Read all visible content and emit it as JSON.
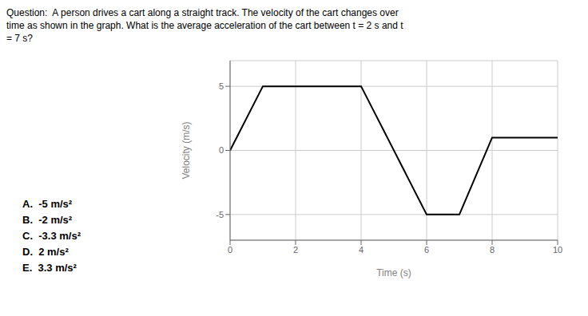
{
  "chart_data": {
    "type": "line",
    "title": "Question:  A person drives a cart along a straight track. The velocity of the cart changes over\ntime as shown in the graph. What is the average acceleration of the cart between t = 2 s and t\n= 7 s?",
    "x": [
      0,
      1,
      4,
      6,
      7,
      8,
      10
    ],
    "values": [
      0,
      5,
      5,
      -5,
      -5,
      1,
      1
    ],
    "color": "#000000",
    "x_label": "Time (s)",
    "y_label": "Velocity (m/s)",
    "xlim": [
      0,
      10
    ],
    "ylim": [
      -7,
      7
    ],
    "xticks": [
      0,
      2,
      4,
      6,
      8,
      10
    ],
    "yticks": [
      -5,
      0,
      5
    ],
    "grid": true,
    "annotations": [
      "A.  -5 m/s²",
      "B.  -2 m/s²",
      "C.  -3.3 m/s²",
      "D.  2 m/s²",
      "E.  3.3 m/s²"
    ]
  }
}
